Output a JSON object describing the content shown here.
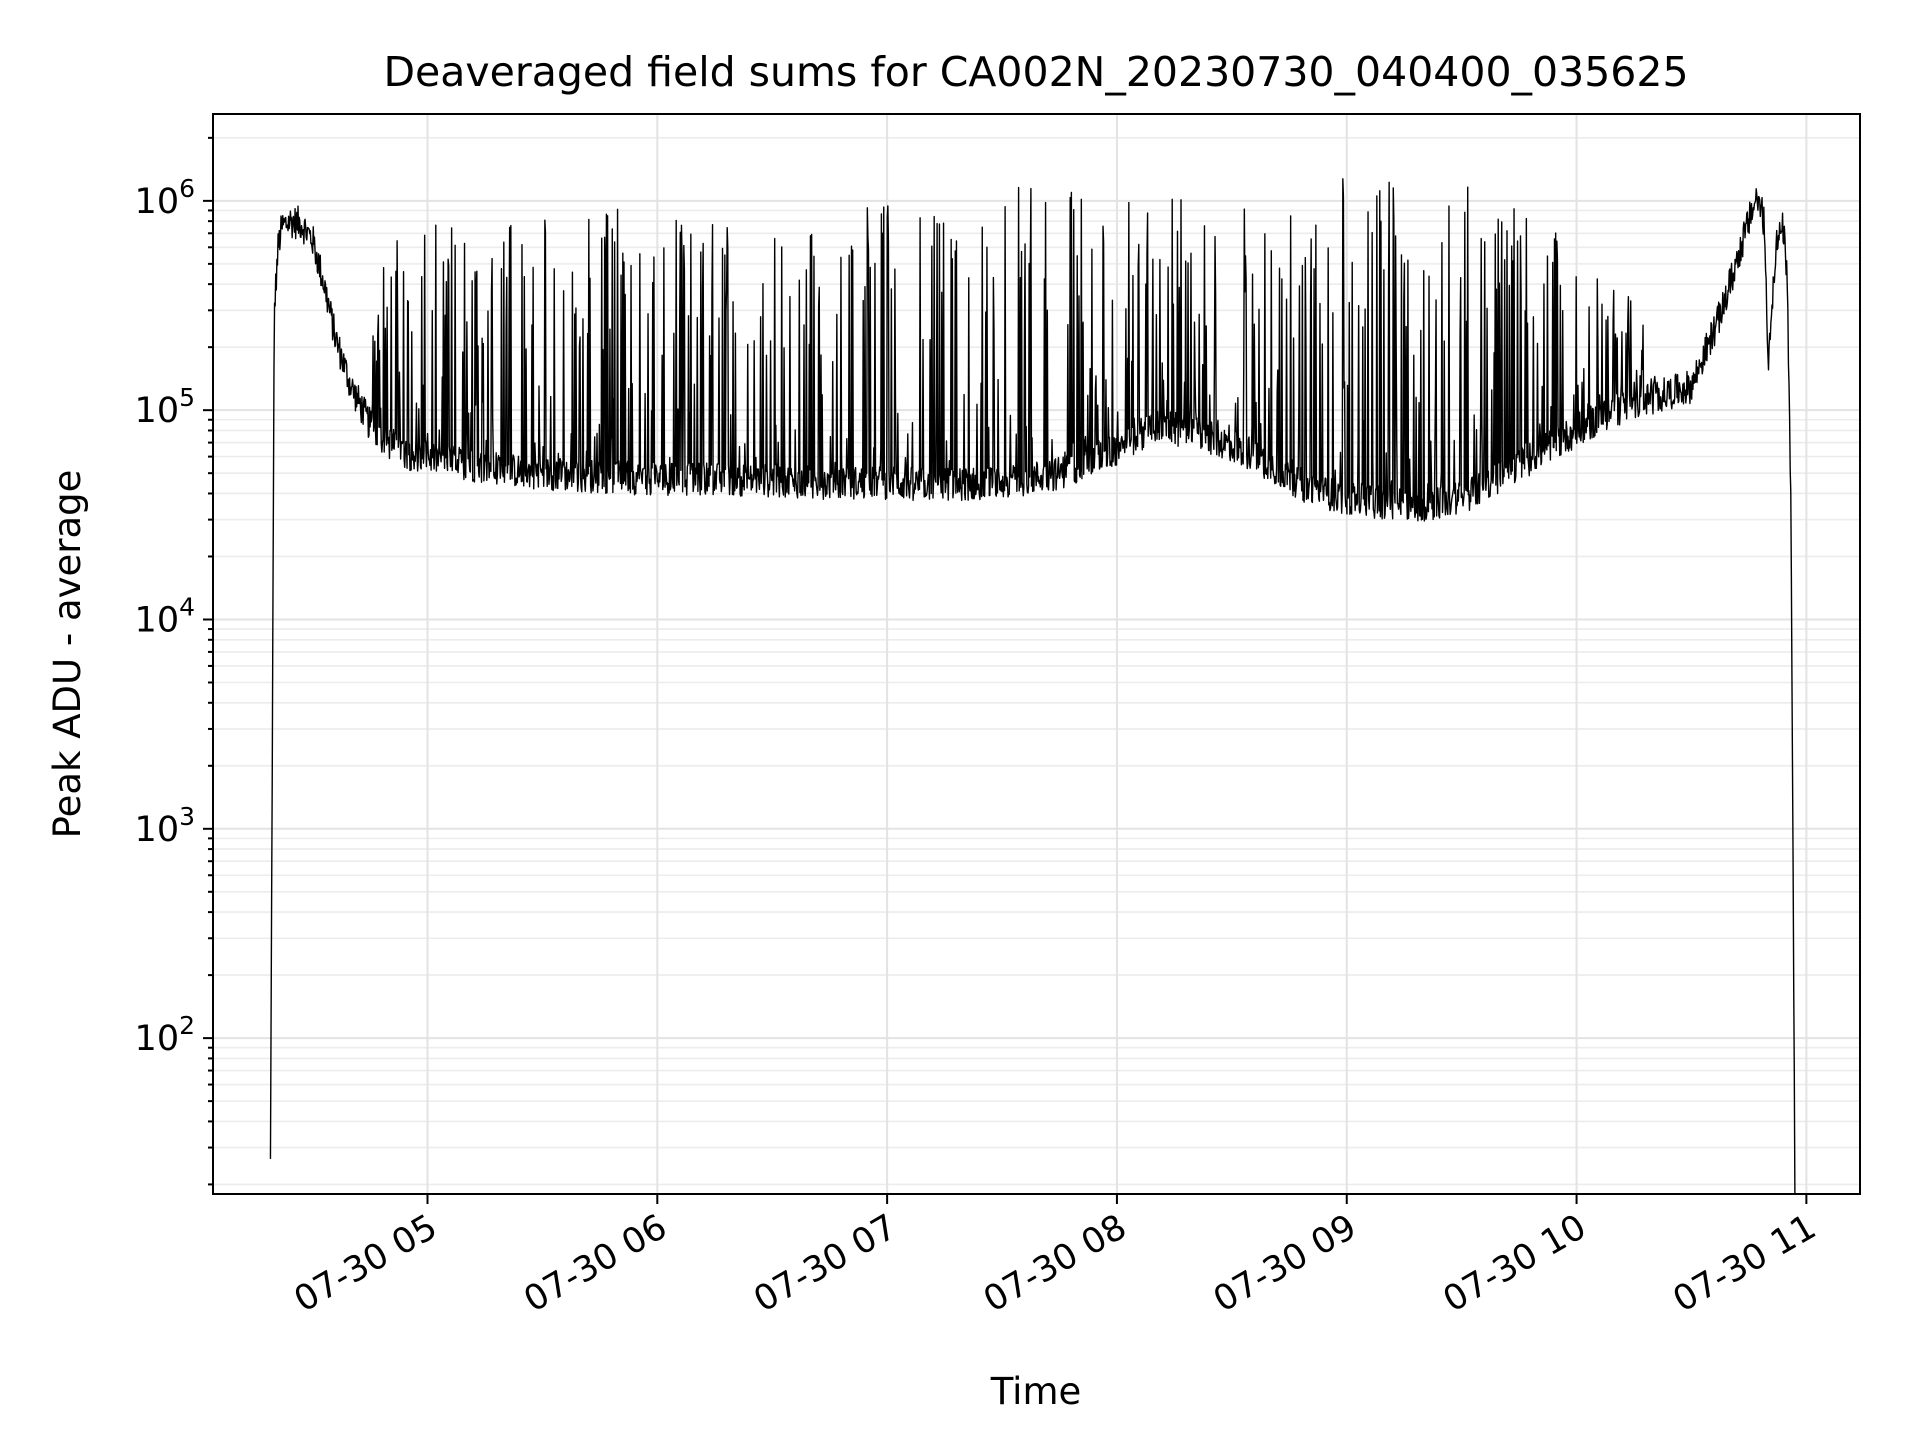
{
  "chart_data": {
    "type": "line",
    "title": "Deaveraged field sums for CA002N_20230730_040400_035625",
    "xlabel": "Time",
    "ylabel": "Peak ADU - average",
    "y_scale": "log",
    "xlim": [
      "2023-07-30T04:04:00",
      "2023-07-30T11:14:00"
    ],
    "ylim": [
      18,
      2600000
    ],
    "x_ticks": [
      {
        "value": "2023-07-30T05:00:00",
        "label": "07-30 05"
      },
      {
        "value": "2023-07-30T06:00:00",
        "label": "07-30 06"
      },
      {
        "value": "2023-07-30T07:00:00",
        "label": "07-30 07"
      },
      {
        "value": "2023-07-30T08:00:00",
        "label": "07-30 08"
      },
      {
        "value": "2023-07-30T09:00:00",
        "label": "07-30 09"
      },
      {
        "value": "2023-07-30T10:00:00",
        "label": "07-30 10"
      },
      {
        "value": "2023-07-30T11:00:00",
        "label": "07-30 11"
      }
    ],
    "y_ticks": [
      {
        "value": 100,
        "base": "10",
        "exp": "2"
      },
      {
        "value": 1000,
        "base": "10",
        "exp": "3"
      },
      {
        "value": 10000,
        "base": "10",
        "exp": "4"
      },
      {
        "value": 100000,
        "base": "10",
        "exp": "5"
      },
      {
        "value": 1000000,
        "base": "10",
        "exp": "6"
      }
    ],
    "grid": "both",
    "line_color": "#000000",
    "series": [
      {
        "x": [
          "2023-07-30T04:19:00",
          "2023-07-30T04:20:00",
          "2023-07-30T04:21:00",
          "2023-07-30T04:22:00",
          "2023-07-30T04:24:00",
          "2023-07-30T04:27:00",
          "2023-07-30T04:30:00",
          "2023-07-30T04:33:00",
          "2023-07-30T04:36:00",
          "2023-07-30T04:40:00",
          "2023-07-30T04:45:00",
          "2023-07-30T04:50:00",
          "2023-07-30T04:55:00",
          "2023-07-30T05:00:00",
          "2023-07-30T05:10:00",
          "2023-07-30T05:20:00",
          "2023-07-30T05:30:00",
          "2023-07-30T05:45:00",
          "2023-07-30T06:00:00",
          "2023-07-30T06:15:00",
          "2023-07-30T06:30:00",
          "2023-07-30T06:45:00",
          "2023-07-30T07:00:00",
          "2023-07-30T07:15:00",
          "2023-07-30T07:30:00",
          "2023-07-30T07:45:00",
          "2023-07-30T08:00:00",
          "2023-07-30T08:10:00",
          "2023-07-30T08:20:00",
          "2023-07-30T08:30:00",
          "2023-07-30T08:40:00",
          "2023-07-30T08:50:00",
          "2023-07-30T09:00:00",
          "2023-07-30T09:10:00",
          "2023-07-30T09:20:00",
          "2023-07-30T09:30:00",
          "2023-07-30T09:40:00",
          "2023-07-30T09:50:00",
          "2023-07-30T10:00:00",
          "2023-07-30T10:10:00",
          "2023-07-30T10:20:00",
          "2023-07-30T10:30:00",
          "2023-07-30T10:38:00",
          "2023-07-30T10:44:00",
          "2023-07-30T10:47:00",
          "2023-07-30T10:49:00",
          "2023-07-30T10:50:00",
          "2023-07-30T10:52:00",
          "2023-07-30T10:54:00",
          "2023-07-30T10:55:00",
          "2023-07-30T10:56:00",
          "2023-07-30T10:57:00"
        ],
        "baseline": [
          25,
          300000,
          600000,
          750000,
          800000,
          780000,
          650000,
          400000,
          220000,
          130000,
          85000,
          70000,
          62000,
          60000,
          55000,
          52000,
          50000,
          48000,
          47000,
          47000,
          46000,
          45000,
          45000,
          44000,
          45000,
          50000,
          65000,
          85000,
          78000,
          68000,
          55000,
          42000,
          38000,
          36000,
          35000,
          38000,
          48000,
          62000,
          80000,
          100000,
          115000,
          130000,
          300000,
          700000,
          1050000,
          800000,
          170000,
          600000,
          750000,
          400000,
          30000,
          18
        ],
        "spike_max": [
          30,
          350000,
          700000,
          850000,
          900000,
          1100000,
          900000,
          500000,
          350000,
          200000,
          200000,
          800000,
          800000,
          800000,
          850000,
          900000,
          900000,
          950000,
          900000,
          950000,
          900000,
          850000,
          1000000,
          1100000,
          1200000,
          1200000,
          1200000,
          1100000,
          1000000,
          900000,
          1400000,
          1500000,
          1500000,
          1500000,
          1300000,
          1200000,
          1000000,
          800000,
          600000,
          400000,
          300000,
          200000,
          400000,
          1000000,
          1500000,
          1200000,
          250000,
          700000,
          780000,
          450000,
          32000,
          18
        ]
      }
    ]
  }
}
